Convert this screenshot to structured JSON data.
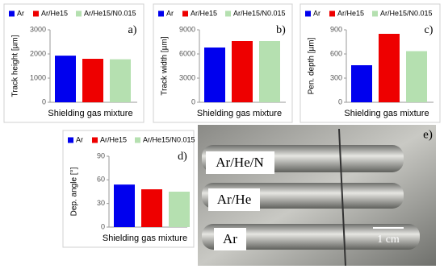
{
  "chart_data": [
    {
      "type": "bar",
      "panel_label": "a)",
      "ylabel": "Track height [µm]",
      "xlabel": "Shielding gas mixture",
      "categories": [
        null
      ],
      "series": [
        {
          "name": "Ar",
          "color": "#0000ee",
          "values": [
            1930
          ]
        },
        {
          "name": "Ar/He15",
          "color": "#ee0000",
          "values": [
            1800
          ]
        },
        {
          "name": "Ar/He15/N0.015",
          "color": "#b5e0b0",
          "values": [
            1780
          ]
        }
      ],
      "ylim": [
        0,
        3000
      ],
      "yticks": [
        0,
        1000,
        2000,
        3000
      ],
      "grid": false
    },
    {
      "type": "bar",
      "panel_label": "b)",
      "ylabel": "Track width [µm]",
      "xlabel": "Shielding gas mixture",
      "categories": [
        null
      ],
      "series": [
        {
          "name": "Ar",
          "color": "#0000ee",
          "values": [
            6800
          ]
        },
        {
          "name": "Ar/He15",
          "color": "#ee0000",
          "values": [
            7600
          ]
        },
        {
          "name": "Ar/He15/N0.015",
          "color": "#b5e0b0",
          "values": [
            7600
          ]
        }
      ],
      "ylim": [
        0,
        9000
      ],
      "yticks": [
        0,
        3000,
        6000,
        9000
      ],
      "grid": false
    },
    {
      "type": "bar",
      "panel_label": "c)",
      "ylabel": "Pen. depth [µm]",
      "xlabel": "Shielding gas mixture",
      "categories": [
        null
      ],
      "series": [
        {
          "name": "Ar",
          "color": "#0000ee",
          "values": [
            460
          ]
        },
        {
          "name": "Ar/He15",
          "color": "#ee0000",
          "values": [
            850
          ]
        },
        {
          "name": "Ar/He15/N0.015",
          "color": "#b5e0b0",
          "values": [
            635
          ]
        }
      ],
      "ylim": [
        0,
        900
      ],
      "yticks": [
        0,
        300,
        600,
        900
      ],
      "grid": false
    },
    {
      "type": "bar",
      "panel_label": "d)",
      "ylabel": "Dep. angle [°]",
      "xlabel": "Shielding gas mixture",
      "categories": [
        null
      ],
      "series": [
        {
          "name": "Ar",
          "color": "#0000ee",
          "values": [
            54
          ]
        },
        {
          "name": "Ar/He15",
          "color": "#ee0000",
          "values": [
            48
          ]
        },
        {
          "name": "Ar/He15/N0.015",
          "color": "#b5e0b0",
          "values": [
            45
          ]
        }
      ],
      "ylim": [
        0,
        90
      ],
      "yticks": [
        0,
        30,
        60,
        90
      ],
      "grid": false
    }
  ],
  "photo": {
    "panel_label": "e)",
    "labels": [
      "Ar/He/N",
      "Ar/He",
      "Ar"
    ],
    "scale": "1 cm"
  }
}
